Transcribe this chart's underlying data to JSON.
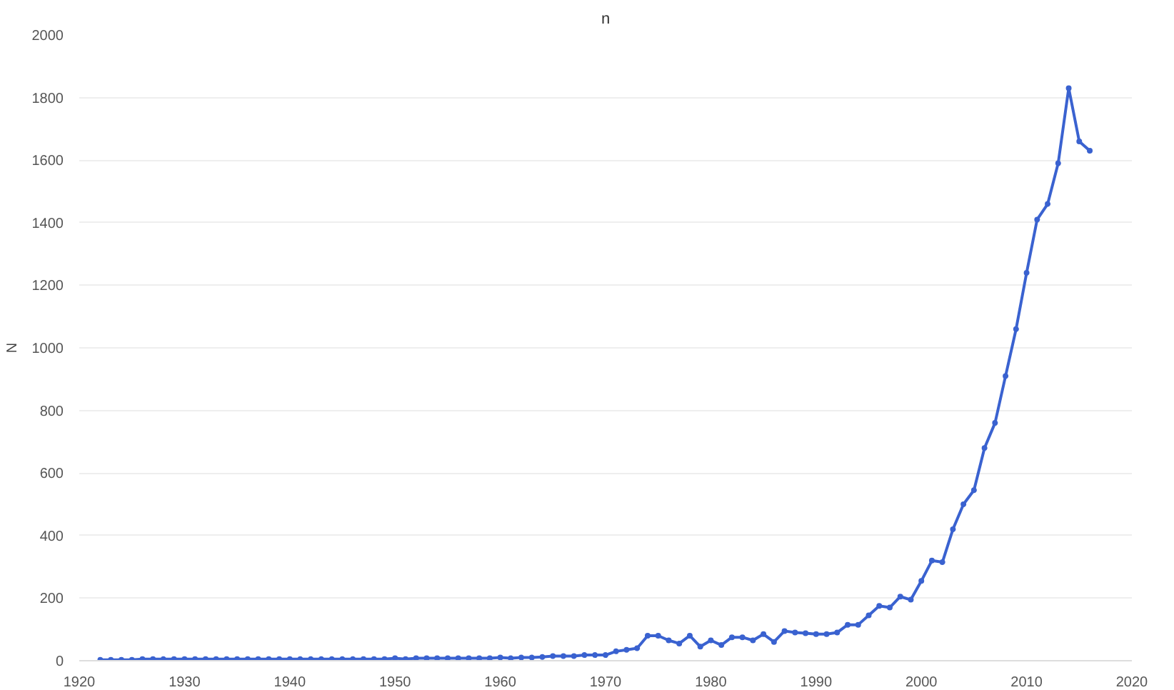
{
  "chart_data": {
    "type": "line",
    "title": "n",
    "ylabel": "N",
    "x": [
      1922,
      1923,
      1924,
      1925,
      1926,
      1927,
      1928,
      1929,
      1930,
      1931,
      1932,
      1933,
      1934,
      1935,
      1936,
      1937,
      1938,
      1939,
      1940,
      1941,
      1942,
      1943,
      1944,
      1945,
      1946,
      1947,
      1948,
      1949,
      1950,
      1951,
      1952,
      1953,
      1954,
      1955,
      1956,
      1957,
      1958,
      1959,
      1960,
      1961,
      1962,
      1963,
      1964,
      1965,
      1966,
      1967,
      1968,
      1969,
      1970,
      1971,
      1972,
      1973,
      1974,
      1975,
      1976,
      1977,
      1978,
      1979,
      1980,
      1981,
      1982,
      1983,
      1984,
      1985,
      1986,
      1987,
      1988,
      1989,
      1990,
      1991,
      1992,
      1993,
      1994,
      1995,
      1996,
      1997,
      1998,
      1999,
      2000,
      2001,
      2002,
      2003,
      2004,
      2005,
      2006,
      2007,
      2008,
      2009,
      2010,
      2011,
      2012,
      2013,
      2014,
      2015,
      2016
    ],
    "series": [
      {
        "color": "#3a62d0",
        "values": [
          3,
          3,
          3,
          3,
          5,
          5,
          5,
          5,
          5,
          5,
          5,
          5,
          5,
          5,
          5,
          5,
          5,
          5,
          5,
          5,
          5,
          5,
          5,
          5,
          5,
          5,
          5,
          5,
          8,
          5,
          8,
          8,
          8,
          8,
          8,
          8,
          8,
          8,
          10,
          8,
          10,
          10,
          12,
          15,
          15,
          15,
          18,
          18,
          18,
          30,
          35,
          40,
          80,
          80,
          65,
          55,
          80,
          45,
          65,
          50,
          75,
          75,
          65,
          85,
          60,
          95,
          90,
          88,
          85,
          85,
          90,
          115,
          115,
          145,
          175,
          170,
          205,
          195,
          255,
          320,
          315,
          420,
          500,
          545,
          680,
          760,
          910,
          1060,
          1240,
          1410,
          1460,
          1590,
          1830,
          1660,
          1630
        ]
      }
    ],
    "xlim": [
      1920,
      2020
    ],
    "xticks": [
      1920,
      1930,
      1940,
      1950,
      1960,
      1970,
      1980,
      1990,
      2000,
      2010,
      2020
    ],
    "ylim": [
      0,
      2000
    ],
    "yticks": [
      0,
      200,
      400,
      600,
      800,
      1000,
      1200,
      1400,
      1600,
      1800,
      2000
    ],
    "grid": "y",
    "marker": "circle",
    "line_style": "solid"
  }
}
